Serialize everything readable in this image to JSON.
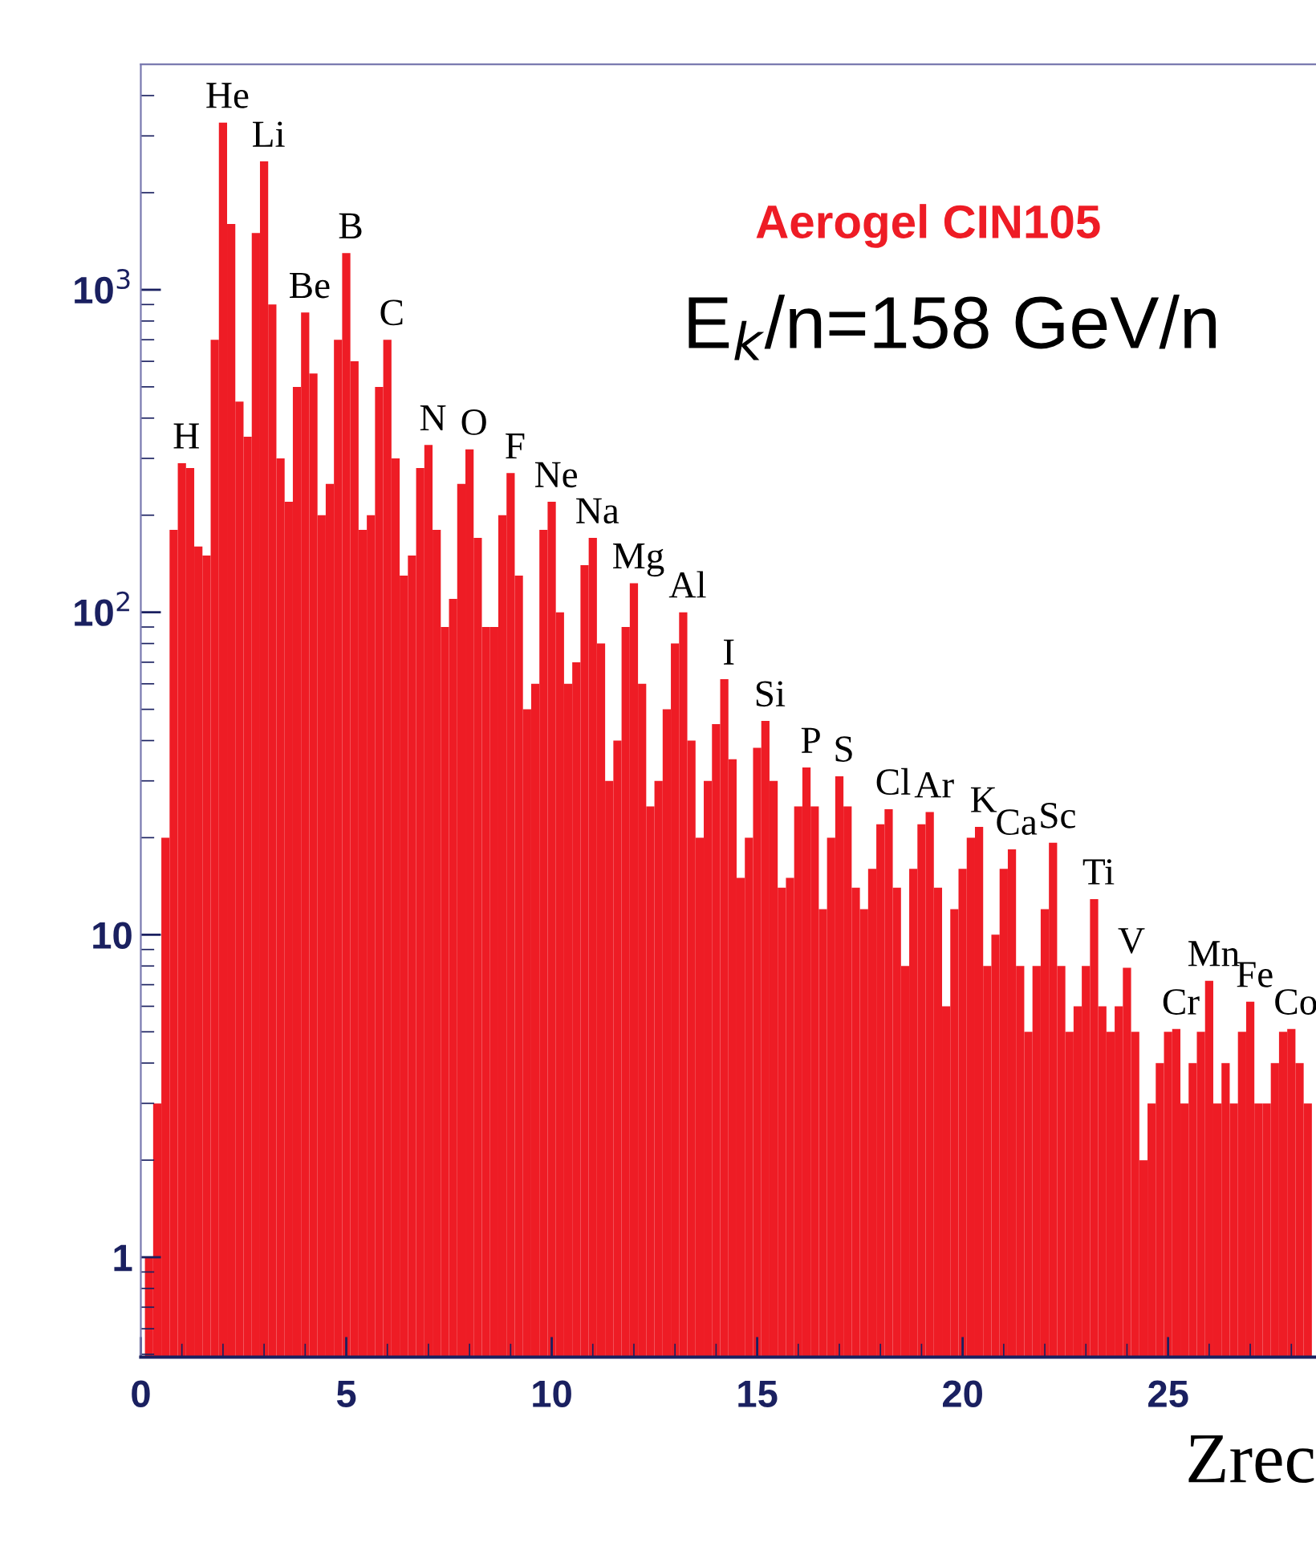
{
  "chart_data": {
    "type": "histogram",
    "title": "Aerogel CIN105",
    "subtitle": "E$_{k}$/n=158 GeV/n",
    "xlabel": "Zrec",
    "color": "#ee1c25",
    "log": "y",
    "grid": false,
    "legend": false,
    "bins": [
      0.1,
      0.3,
      0.5,
      0.7,
      0.9,
      1.1,
      1.3,
      1.5,
      1.7,
      1.9,
      2.1,
      2.3,
      2.5,
      2.7,
      2.9,
      3.1,
      3.3,
      3.5,
      3.7,
      3.9,
      4.1,
      4.3,
      4.5,
      4.7,
      4.9,
      5.1,
      5.3,
      5.5,
      5.7,
      5.9,
      6.1,
      6.3,
      6.5,
      6.7,
      6.9,
      7.1,
      7.3,
      7.5,
      7.7,
      7.9,
      8.1,
      8.3,
      8.5,
      8.7,
      8.9,
      9.1,
      9.3,
      9.5,
      9.7,
      9.9,
      10.1,
      10.3,
      10.5,
      10.7,
      10.9,
      11.1,
      11.3,
      11.5,
      11.7,
      11.9,
      12.1,
      12.3,
      12.5,
      12.7,
      12.9,
      13.1,
      13.3,
      13.5,
      13.7,
      13.9,
      14.1,
      14.3,
      14.5,
      14.7,
      14.9,
      15.1,
      15.3,
      15.5,
      15.7,
      15.9,
      16.1,
      16.3,
      16.5,
      16.7,
      16.9,
      17.1,
      17.3,
      17.5,
      17.7,
      17.9,
      18.1,
      18.3,
      18.5,
      18.7,
      18.9,
      19.1,
      19.3,
      19.5,
      19.7,
      19.9,
      20.1,
      20.3,
      20.5,
      20.7,
      20.9,
      21.1,
      21.3,
      21.5,
      21.7,
      21.9,
      22.1,
      22.3,
      22.5,
      22.7,
      22.9,
      23.1,
      23.3,
      23.5,
      23.7,
      23.9,
      24.1,
      24.3,
      24.5,
      24.7,
      24.9,
      25.1,
      25.3,
      25.5,
      25.7,
      25.9,
      26.1,
      26.3,
      26.5,
      26.7,
      26.9,
      27.1,
      27.3,
      27.5,
      27.7,
      27.9,
      28.1,
      28.3,
      28.5
    ],
    "values": [
      1,
      3,
      20,
      180,
      290,
      280,
      160,
      150,
      700,
      3300,
      1600,
      450,
      350,
      1500,
      2500,
      900,
      300,
      220,
      500,
      850,
      550,
      200,
      250,
      700,
      1300,
      600,
      180,
      200,
      500,
      700,
      300,
      130,
      150,
      280,
      330,
      180,
      90,
      110,
      250,
      320,
      170,
      90,
      90,
      200,
      270,
      130,
      50,
      60,
      180,
      220,
      100,
      60,
      70,
      140,
      170,
      80,
      30,
      40,
      90,
      123,
      60,
      25,
      30,
      50,
      80,
      100,
      40,
      20,
      30,
      45,
      62,
      35,
      15,
      20,
      38,
      46,
      30,
      14,
      15,
      25,
      33,
      25,
      12,
      20,
      31,
      25,
      14,
      12,
      16,
      22,
      24.5,
      14,
      8,
      16,
      22,
      24,
      14,
      6,
      12,
      16,
      20,
      21.6,
      8,
      10,
      16,
      18.4,
      8,
      5,
      8,
      12,
      19.3,
      8,
      5,
      6,
      8,
      12.9,
      6,
      5,
      6,
      7.9,
      5,
      2,
      3,
      4,
      5,
      5.1,
      3,
      4,
      5,
      7.2,
      3,
      4,
      3,
      5,
      6.2,
      3,
      3,
      4,
      5,
      5.1,
      4,
      3
    ],
    "xlim": [
      0,
      28.6
    ],
    "ylim": [
      0.49,
      5000
    ],
    "xticks": [
      0,
      5,
      10,
      15,
      20,
      25
    ],
    "yticks": [
      1,
      10,
      {
        "value": 100,
        "label": "10$^{2}$"
      },
      {
        "value": 1000,
        "label": "10$^{3}$"
      }
    ],
    "annotations": [
      {
        "text": "H",
        "x": 1.0,
        "y": 290
      },
      {
        "text": "He",
        "x": 2.0,
        "y": 3300
      },
      {
        "text": "Li",
        "x": 3.0,
        "y": 2500
      },
      {
        "text": "Be",
        "x": 4.0,
        "y": 850
      },
      {
        "text": "B",
        "x": 5.0,
        "y": 1300
      },
      {
        "text": "C",
        "x": 6.0,
        "y": 700
      },
      {
        "text": "N",
        "x": 7.0,
        "y": 330
      },
      {
        "text": "O",
        "x": 8.0,
        "y": 320
      },
      {
        "text": "F",
        "x": 9.0,
        "y": 270
      },
      {
        "text": "Ne",
        "x": 10.0,
        "y": 220
      },
      {
        "text": "Na",
        "x": 11.0,
        "y": 170
      },
      {
        "text": "Mg",
        "x": 12.0,
        "y": 123
      },
      {
        "text": "Al",
        "x": 13.2,
        "y": 100
      },
      {
        "text": "I",
        "x": 14.2,
        "y": 62
      },
      {
        "text": "Si",
        "x": 15.2,
        "y": 46
      },
      {
        "text": "P",
        "x": 16.2,
        "y": 33
      },
      {
        "text": "S",
        "x": 17.0,
        "y": 31
      },
      {
        "text": "Cl",
        "x": 18.2,
        "y": 24.5
      },
      {
        "text": "Ar",
        "x": 19.2,
        "y": 24
      },
      {
        "text": "K",
        "x": 20.4,
        "y": 21.6
      },
      {
        "text": "Ca",
        "x": 21.2,
        "y": 18.4
      },
      {
        "text": "Sc",
        "x": 22.2,
        "y": 19.3
      },
      {
        "text": "Ti",
        "x": 23.2,
        "y": 12.9
      },
      {
        "text": "V",
        "x": 24.0,
        "y": 7.9
      },
      {
        "text": "Cr",
        "x": 25.2,
        "y": 5.1
      },
      {
        "text": "Mn",
        "x": 26.0,
        "y": 7.2
      },
      {
        "text": "Fe",
        "x": 27.0,
        "y": 6.2
      },
      {
        "text": "Co",
        "x": 28.0,
        "y": 5.1
      }
    ]
  }
}
